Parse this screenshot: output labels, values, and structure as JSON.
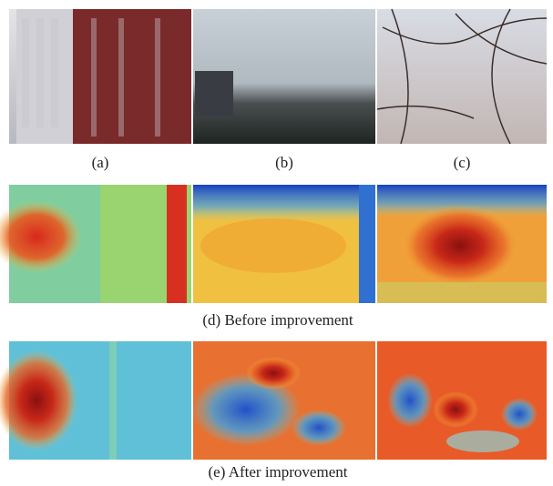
{
  "figure": {
    "row1_labels": [
      "(a)",
      "(b)",
      "(c)"
    ],
    "caption_d": "(d) Before improvement",
    "caption_e": "(e) After improvement"
  }
}
